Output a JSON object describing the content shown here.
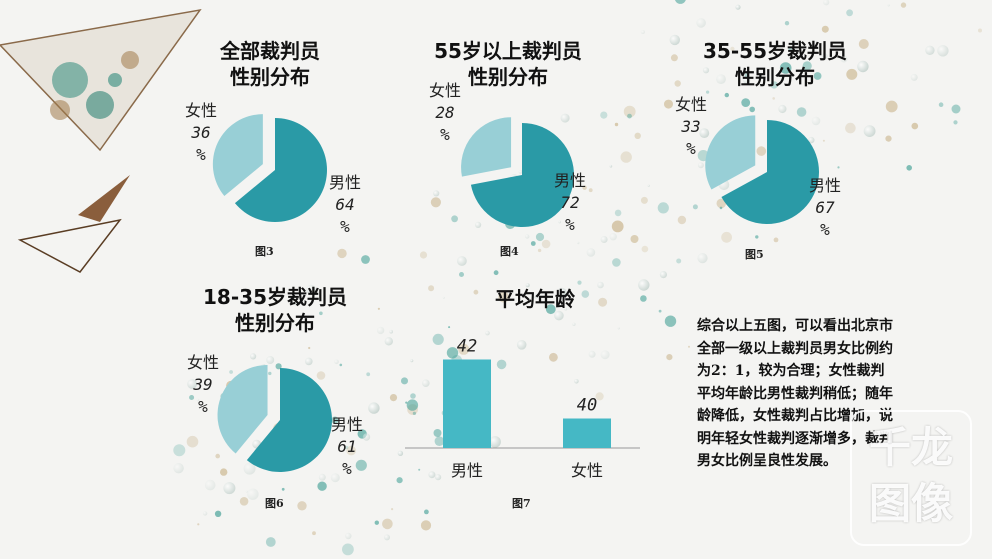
{
  "chart_data": [
    {
      "type": "pie",
      "title": "全部裁判员\n性别分布",
      "caption": "图3",
      "slices": [
        {
          "label": "男性",
          "value": 64,
          "display": "64\n%",
          "color": "#2a9aa6"
        },
        {
          "label": "女性",
          "value": 36,
          "display": "36\n%",
          "color": "#98cfd6"
        }
      ]
    },
    {
      "type": "pie",
      "title": "55岁以上裁判员\n性别分布",
      "caption": "图4",
      "slices": [
        {
          "label": "男性",
          "value": 72,
          "display": "72\n%",
          "color": "#2a9aa6"
        },
        {
          "label": "女性",
          "value": 28,
          "display": "28\n%",
          "color": "#98cfd6"
        }
      ]
    },
    {
      "type": "pie",
      "title": "35-55岁裁判员\n性别分布",
      "caption": "图5",
      "slices": [
        {
          "label": "男性",
          "value": 67,
          "display": "67\n%",
          "color": "#2a9aa6"
        },
        {
          "label": "女性",
          "value": 33,
          "display": "33\n%",
          "color": "#98cfd6"
        }
      ]
    },
    {
      "type": "pie",
      "title": "18-35岁裁判员\n性别分布",
      "caption": "图6",
      "slices": [
        {
          "label": "男性",
          "value": 61,
          "display": "61\n%",
          "color": "#2a9aa6"
        },
        {
          "label": "女性",
          "value": 39,
          "display": "39\n%",
          "color": "#98cfd6"
        }
      ]
    },
    {
      "type": "bar",
      "title": "平均年龄",
      "caption": "图7",
      "categories": [
        "男性",
        "女性"
      ],
      "values": [
        42,
        40
      ],
      "color": "#45b8c5",
      "ylim": [
        39,
        43
      ]
    }
  ],
  "summary": "综合以上五图，可以看出北京市全部一级以上裁判员男女比例约为2：1，较为合理；女性裁判平均年龄比男性裁判稍低；随年龄降低，女性裁判占比增加，说明年轻女性裁判逐渐增多，裁判男女比例呈良性发展。",
  "watermark": {
    "line1": "千龙",
    "line2": "图像"
  }
}
